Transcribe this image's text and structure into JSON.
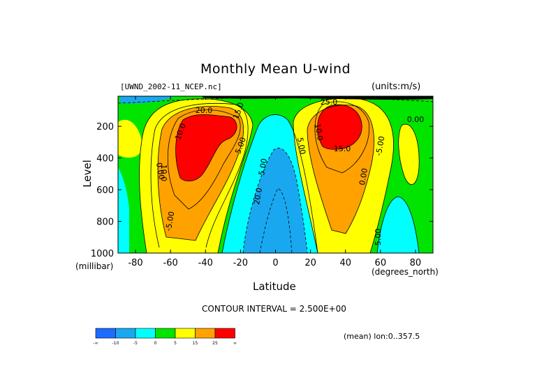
{
  "chart_data": {
    "type": "contour",
    "title": "Monthly Mean U-wind",
    "dataset": "[UWND_2002-11_NCEP.nc]",
    "units": "(units:m/s)",
    "xlabel": "Latitude",
    "x_unit_label": "(degrees_north)",
    "ylabel": "Level",
    "y_unit_label": "(millibar)",
    "xlim": [
      -90,
      90
    ],
    "ylim": [
      1000,
      10
    ],
    "x_ticks": [
      -80,
      -60,
      -40,
      -20,
      0,
      20,
      40,
      60,
      80
    ],
    "y_ticks": [
      200,
      400,
      600,
      800,
      1000
    ],
    "contour_interval_text": "CONTOUR INTERVAL = 2.500E+00",
    "mean_text": "(mean) lon:0..357.5",
    "contour_labels": [
      "20.0",
      "15.0",
      "10.0",
      "5.00",
      "0.00",
      "-5.00",
      "20.0",
      "25.0",
      "15.0",
      "10.0",
      "5.00",
      "0.00",
      "-5.00",
      "5.00",
      "10.0",
      "5.00",
      "0.00"
    ],
    "colorbar": {
      "bins": [
        {
          "label": "-∞",
          "color": "#1d6bff"
        },
        {
          "label": "-10",
          "color": "#19a8f0"
        },
        {
          "label": "-5",
          "color": "#00ffff"
        },
        {
          "label": "0",
          "color": "#00e400"
        },
        {
          "label": "5",
          "color": "#ffff00"
        },
        {
          "label": "15",
          "color": "#ffa200"
        },
        {
          "label": "25",
          "color": "#ff0000"
        }
      ],
      "end_label": "∞"
    },
    "jet_maxima": [
      {
        "lat": -45,
        "level": 250,
        "value": 30
      },
      {
        "lat": 37,
        "level": 200,
        "value": 35
      }
    ]
  }
}
